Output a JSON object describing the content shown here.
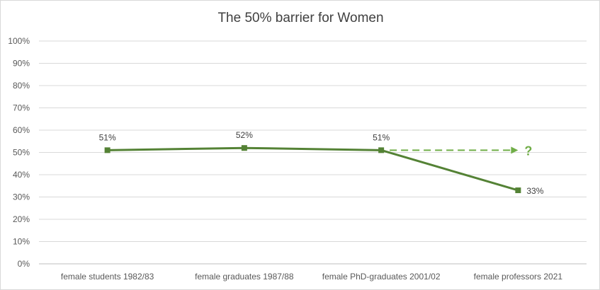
{
  "chart_data": {
    "type": "line",
    "title": "The 50% barrier for Women",
    "categories": [
      "female students 1982/83",
      "female graduates 1987/88",
      "female PhD-graduates 2001/02",
      "female professors 2021"
    ],
    "series": [
      {
        "values": [
          51,
          52,
          51,
          33
        ],
        "color": "#548235"
      }
    ],
    "data_labels": [
      "51%",
      "52%",
      "51%",
      "33%"
    ],
    "y_ticks": [
      "0%",
      "10%",
      "20%",
      "30%",
      "40%",
      "50%",
      "60%",
      "70%",
      "80%",
      "90%",
      "100%"
    ],
    "ylim": [
      0,
      100
    ],
    "grid": true,
    "annotation": {
      "label": "?",
      "style": "dashed-arrow",
      "from_category_index": 2,
      "value": 51
    },
    "xlabel": "",
    "ylabel": ""
  }
}
